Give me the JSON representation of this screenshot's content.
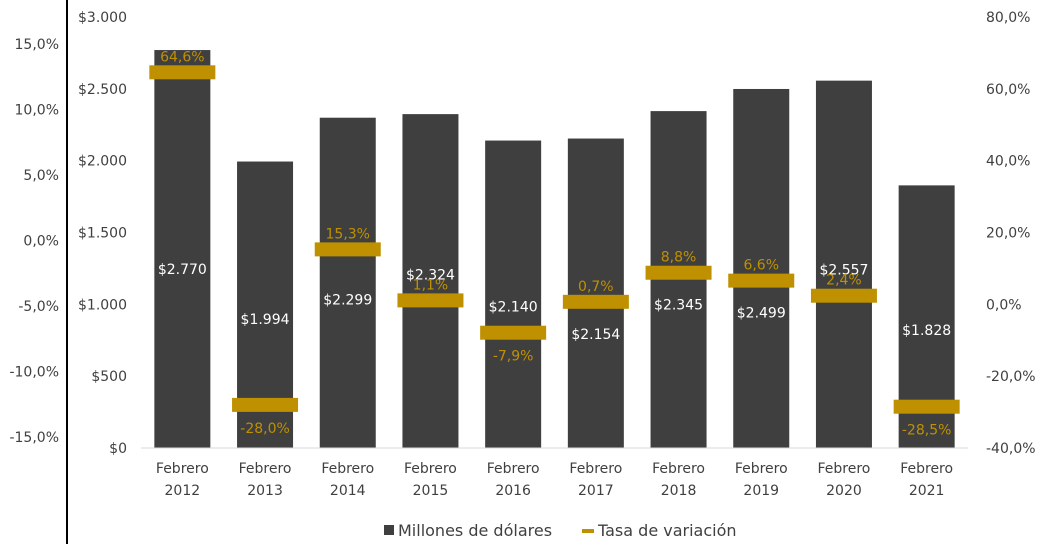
{
  "chart_data": {
    "type": "bar",
    "categories": [
      [
        "Febrero",
        "2012"
      ],
      [
        "Febrero",
        "2013"
      ],
      [
        "Febrero",
        "2014"
      ],
      [
        "Febrero",
        "2015"
      ],
      [
        "Febrero",
        "2016"
      ],
      [
        "Febrero",
        "2017"
      ],
      [
        "Febrero",
        "2018"
      ],
      [
        "Febrero",
        "2019"
      ],
      [
        "Febrero",
        "2020"
      ],
      [
        "Febrero",
        "2021"
      ]
    ],
    "series": [
      {
        "name": "Millones de dólares",
        "type": "bar",
        "axis": "primary",
        "color": "#3f3f3f",
        "values": [
          2770,
          1994,
          2299,
          2324,
          2140,
          2154,
          2345,
          2499,
          2557,
          1828
        ],
        "labels": [
          "$2.770",
          "$1.994",
          "$2.299",
          "$2.324",
          "$2.140",
          "$2.154",
          "$2.345",
          "$2.499",
          "$2.557",
          "$1.828"
        ]
      },
      {
        "name": "Tasa de variación",
        "type": "marker",
        "axis": "secondary",
        "color": "#bf9000",
        "values": [
          64.6,
          -28.0,
          15.3,
          1.1,
          -7.9,
          0.7,
          8.8,
          6.6,
          2.4,
          -28.5
        ],
        "labels": [
          "64,6%",
          "-28,0%",
          "15,3%",
          "1,1%",
          "-7,9%",
          "0,7%",
          "8,8%",
          "6,6%",
          "2,4%",
          "-28,5%"
        ]
      }
    ],
    "primary_axis": {
      "ylim": [
        0,
        3000
      ],
      "ticks": [
        0,
        500,
        1000,
        1500,
        2000,
        2500,
        3000
      ],
      "tick_labels": [
        "$0",
        "$500",
        "$1.000",
        "$1.500",
        "$2.000",
        "$2.500",
        "$3.000"
      ]
    },
    "secondary_axis": {
      "ylim": [
        -40,
        80
      ],
      "ticks": [
        -40,
        -20,
        0,
        20,
        40,
        60,
        80
      ],
      "tick_labels": [
        "-40,0%",
        "-20,0%",
        "0,0%",
        "20,0%",
        "40,0%",
        "60,0%",
        "80,0%"
      ]
    },
    "outer_left_axis": {
      "ticks": [
        -15,
        -10,
        -5,
        0,
        5,
        10,
        15
      ],
      "tick_labels": [
        "-15,0%",
        "-10,0%",
        "-5,0%",
        "0,0%",
        "5,0%",
        "10,0%",
        "15,0%"
      ]
    },
    "legend": {
      "position": "bottom",
      "items": [
        "Millones de dólares",
        "Tasa de variación"
      ]
    },
    "grid": false
  }
}
